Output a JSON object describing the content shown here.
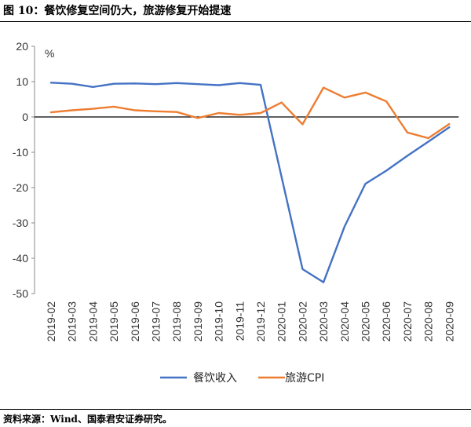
{
  "figure": {
    "title": "图 10：餐饮修复空间仍大，旅游修复开始提速",
    "source": "资料来源：Wind、国泰君安证券研究。"
  },
  "chart_data": {
    "type": "line",
    "title": "",
    "xlabel": "",
    "ylabel": "%",
    "ylim": [
      -50,
      20
    ],
    "yticks": [
      20,
      10,
      0,
      -10,
      -20,
      -30,
      -40,
      -50
    ],
    "grid": false,
    "legend_position": "bottom",
    "categories": [
      "2019-02",
      "2019-03",
      "2019-04",
      "2019-05",
      "2019-06",
      "2019-07",
      "2019-08",
      "2019-09",
      "2019-10",
      "2019-11",
      "2019-12",
      "2020-01",
      "2020-02",
      "2020-03",
      "2020-04",
      "2020-05",
      "2020-06",
      "2020-07",
      "2020-08",
      "2020-09"
    ],
    "series": [
      {
        "name": "餐饮收入",
        "color": "#4472C4",
        "values": [
          9.7,
          9.4,
          8.5,
          9.4,
          9.5,
          9.3,
          9.6,
          9.3,
          9.0,
          9.6,
          9.1,
          -17,
          -43.1,
          -46.8,
          -31.1,
          -18.9,
          -15.2,
          -11.0,
          -7.0,
          -2.9
        ]
      },
      {
        "name": "旅游CPI",
        "color": "#ED7D31",
        "values": [
          1.3,
          1.9,
          2.3,
          2.9,
          1.9,
          1.6,
          1.4,
          -0.3,
          1.1,
          0.6,
          1.1,
          4.1,
          -2.1,
          8.3,
          5.5,
          6.9,
          4.4,
          -4.4,
          -6.0,
          -2.0
        ]
      }
    ]
  }
}
